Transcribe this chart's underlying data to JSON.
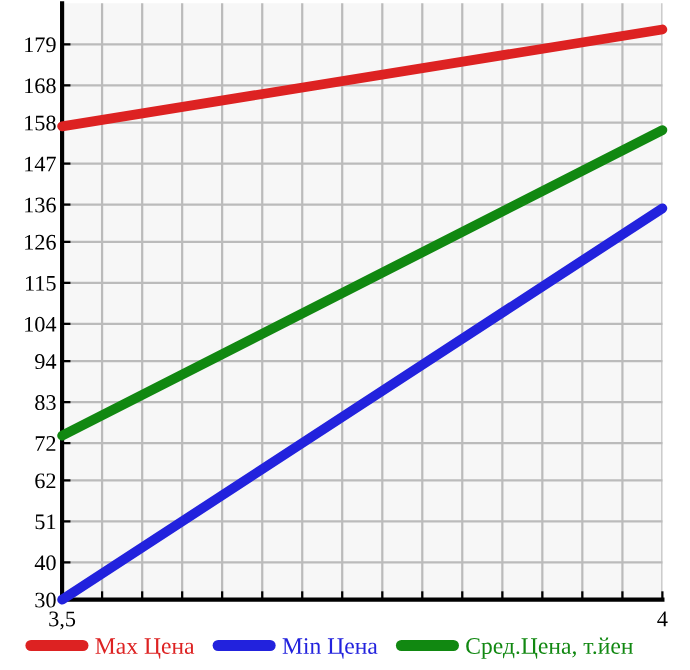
{
  "chart_data": {
    "type": "line",
    "series": [
      {
        "name": "Max Цена",
        "color": "#dd2222",
        "values": [
          157,
          183
        ]
      },
      {
        "name": "Min Цена",
        "color": "#2222dd",
        "values": [
          30,
          135
        ]
      },
      {
        "name": "Сред.Цена, т.йен",
        "color": "#118811",
        "values": [
          74,
          156
        ]
      }
    ],
    "x": [
      3.5,
      4
    ],
    "xlim": [
      3.5,
      4
    ],
    "ylim": [
      30,
      190
    ],
    "xticks": [
      {
        "value": 3.5,
        "label": "3,5"
      },
      {
        "value": 3.5333,
        "label": null
      },
      {
        "value": 3.5667,
        "label": null
      },
      {
        "value": 3.6,
        "label": null
      },
      {
        "value": 3.6333,
        "label": null
      },
      {
        "value": 3.6667,
        "label": null
      },
      {
        "value": 3.7,
        "label": null
      },
      {
        "value": 3.7333,
        "label": null
      },
      {
        "value": 3.7667,
        "label": null
      },
      {
        "value": 3.8,
        "label": null
      },
      {
        "value": 3.8333,
        "label": null
      },
      {
        "value": 3.8667,
        "label": null
      },
      {
        "value": 3.9,
        "label": null
      },
      {
        "value": 3.9333,
        "label": null
      },
      {
        "value": 3.9667,
        "label": null
      },
      {
        "value": 4,
        "label": "4"
      }
    ],
    "yticks": [
      30,
      40,
      51,
      62,
      72,
      83,
      94,
      104,
      115,
      126,
      136,
      147,
      158,
      168,
      179
    ],
    "grid": true,
    "legend": "bottom",
    "marker": "none",
    "line_style": "solid"
  }
}
